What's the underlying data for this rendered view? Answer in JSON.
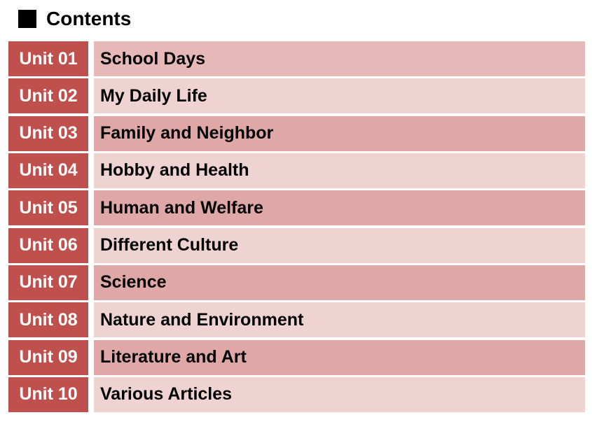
{
  "header": {
    "title": "Contents"
  },
  "units": [
    {
      "number": "Unit 01",
      "title": "School Days"
    },
    {
      "number": "Unit 02",
      "title": "My Daily Life"
    },
    {
      "number": "Unit 03",
      "title": "Family and Neighbor"
    },
    {
      "number": "Unit 04",
      "title": "Hobby and Health"
    },
    {
      "number": "Unit 05",
      "title": "Human and Welfare"
    },
    {
      "number": "Unit 06",
      "title": "Different Culture"
    },
    {
      "number": "Unit 07",
      "title": "Science"
    },
    {
      "number": "Unit 08",
      "title": "Nature and Environment"
    },
    {
      "number": "Unit 09",
      "title": "Literature and Art"
    },
    {
      "number": "Unit 10",
      "title": "Various Articles"
    }
  ],
  "colors": {
    "unit_badge": "#c0504d",
    "row_dark": "#dfa7a6",
    "row_light": "#efd3d2",
    "row_first": "#e6b9b8"
  }
}
